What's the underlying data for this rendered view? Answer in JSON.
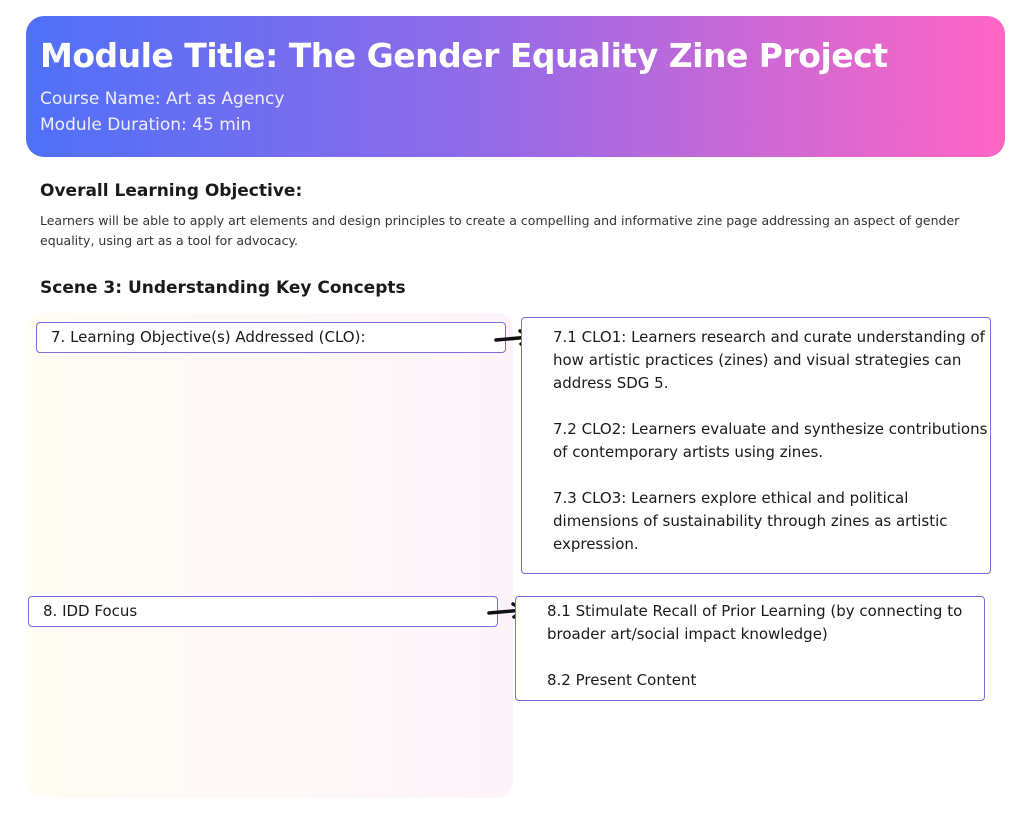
{
  "header": {
    "title": "Module Title: The Gender Equality Zine Project",
    "course": "Course Name: Art as Agency",
    "duration": "Module Duration: 45 min",
    "gradient": [
      "#4f70f8",
      "#ff66c4"
    ]
  },
  "objective": {
    "heading": "Overall Learning Objective:",
    "text": "Learners will be able to apply art elements and design principles to create a compelling and informative zine page addressing an aspect of gender equality, using art as a tool for advocacy."
  },
  "scene": {
    "heading": "Scene 3: Understanding Key Concepts"
  },
  "rows": [
    {
      "label": "7. Learning Objective(s) Addressed (CLO):",
      "items": [
        "7.1 CLO1: Learners research and curate understanding of how artistic practices (zines) and visual strategies can address SDG 5.",
        "7.2 CLO2: Learners evaluate and synthesize contributions of contemporary artists using zines.",
        "7.3 CLO3: Learners explore ethical and political dimensions of sustainability through zines as artistic expression."
      ]
    },
    {
      "label": "8. IDD Focus",
      "items": [
        "8.1 Stimulate Recall of Prior Learning (by connecting to broader art/social impact knowledge)",
        "8.2 Present Content"
      ]
    }
  ],
  "border_color": "#7a6ed4"
}
